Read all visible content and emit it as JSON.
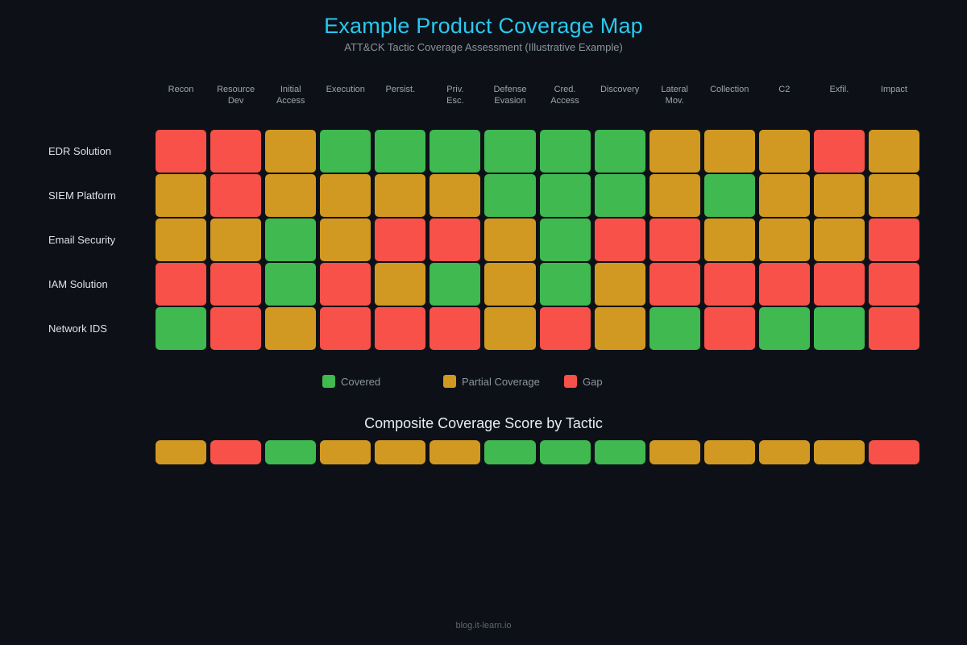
{
  "header": {
    "title": "Example Product Coverage Map",
    "subtitle": "ATT&CK Tactic Coverage Assessment (Illustrative Example)"
  },
  "legend": {
    "items": [
      {
        "key": "covered",
        "label": "Covered"
      },
      {
        "key": "partial",
        "label": "Partial Coverage"
      },
      {
        "key": "gap",
        "label": "Gap"
      }
    ]
  },
  "composite": {
    "title": "Composite Coverage Score by Tactic"
  },
  "footer": {
    "text": "blog.it-learn.io"
  },
  "colors": {
    "background": "#0d1117",
    "title_accent": "#29c8f0",
    "covered": "#3fb950",
    "partial": "#d29922",
    "gap": "#f85149"
  },
  "chart_data": {
    "type": "heatmap",
    "title": "Example Product Coverage Map",
    "subtitle": "ATT&CK Tactic Coverage Assessment (Illustrative Example)",
    "columns": [
      "Recon",
      "Resource\nDev",
      "Initial\nAccess",
      "Execution",
      "Persist.",
      "Priv.\nEsc.",
      "Defense\nEvasion",
      "Cred.\nAccess",
      "Discovery",
      "Lateral\nMov.",
      "Collection",
      "C2",
      "Exfil.",
      "Impact"
    ],
    "rows": [
      "EDR Solution",
      "SIEM Platform",
      "Email Security",
      "IAM Solution",
      "Network IDS"
    ],
    "values": [
      [
        "gap",
        "gap",
        "partial",
        "covered",
        "covered",
        "covered",
        "covered",
        "covered",
        "covered",
        "partial",
        "partial",
        "partial",
        "gap",
        "partial"
      ],
      [
        "partial",
        "gap",
        "partial",
        "partial",
        "partial",
        "partial",
        "covered",
        "covered",
        "covered",
        "partial",
        "covered",
        "partial",
        "partial",
        "partial"
      ],
      [
        "partial",
        "partial",
        "covered",
        "partial",
        "gap",
        "gap",
        "partial",
        "covered",
        "gap",
        "gap",
        "partial",
        "partial",
        "partial",
        "gap"
      ],
      [
        "gap",
        "gap",
        "covered",
        "gap",
        "partial",
        "covered",
        "partial",
        "covered",
        "partial",
        "gap",
        "gap",
        "gap",
        "gap",
        "gap"
      ],
      [
        "covered",
        "gap",
        "partial",
        "gap",
        "gap",
        "gap",
        "partial",
        "gap",
        "partial",
        "covered",
        "gap",
        "covered",
        "covered",
        "gap"
      ]
    ],
    "value_legend": {
      "covered": "Covered",
      "partial": "Partial Coverage",
      "gap": "Gap"
    },
    "legend_position": "below-grid",
    "composite_title": "Composite Coverage Score by Tactic",
    "composite_values": [
      "partial",
      "gap",
      "covered",
      "partial",
      "partial",
      "partial",
      "covered",
      "covered",
      "covered",
      "partial",
      "partial",
      "partial",
      "partial",
      "gap"
    ]
  }
}
